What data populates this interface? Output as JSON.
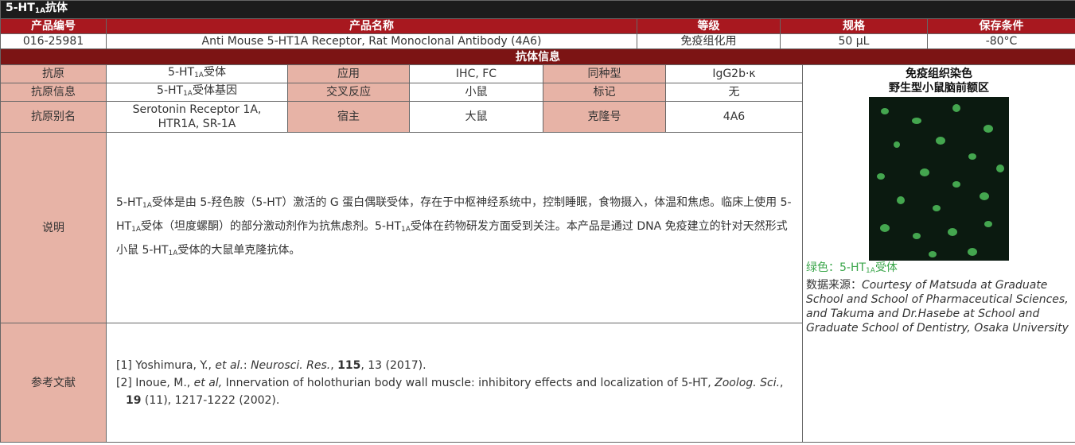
{
  "header": {
    "title": [
      "5-HT",
      "1A",
      "抗体"
    ]
  },
  "product": {
    "columns": [
      "产品编号",
      "产品名称",
      "等级",
      "规格",
      "保存条件"
    ],
    "row": [
      "016-25981",
      "Anti Mouse 5-HT1A Receptor, Rat Monoclonal Antibody (4A6)",
      "免疫组化用",
      "50 µL",
      "-80°C"
    ]
  },
  "info": {
    "title": "抗体信息",
    "antigen": {
      "label": "抗原",
      "value": [
        "5-HT",
        "1A",
        "受体"
      ]
    },
    "application": {
      "label": "应用",
      "value": "IHC, FC"
    },
    "isotype": {
      "label": "同种型",
      "value": "IgG2b·κ"
    },
    "antigen_info": {
      "label": "抗原信息",
      "value": [
        "5-HT",
        "1A",
        "受体基因"
      ]
    },
    "cross_reactivity": {
      "label": "交叉反应",
      "value": "小鼠"
    },
    "tag": {
      "label": "标记",
      "value": "无"
    },
    "alias": {
      "label": "抗原别名",
      "value": "Serotonin Receptor 1A, HTR1A, SR-1A"
    },
    "host": {
      "label": "宿主",
      "value": "大鼠"
    },
    "clone": {
      "label": "克隆号",
      "value": "4A6"
    },
    "description": {
      "label": "说明",
      "value": [
        "5-HT",
        "1A",
        "受体是由 5-羟色胺（5-HT）激活的 G 蛋白偶联受体，存在于中枢神经系统中，控制睡眠，食物摄入，体温和焦虑。临床上使用 5-HT",
        "1A",
        "受体（坦度螺酮）的部分激动剂作为抗焦虑剂。5-HT",
        "1A",
        "受体在药物研发方面受到关注。本产品是通过 DNA 免疫建立的针对天然形式小鼠 5-HT",
        "1A",
        "受体的大鼠单克隆抗体。"
      ]
    },
    "references": {
      "label": "参考文献",
      "items": [
        [
          "[1] Yoshimura, Y., ",
          "et al.",
          ": ",
          "Neurosci. Res.",
          ", ",
          "115",
          ", 13 (2017)."
        ],
        [
          "[2] Inoue, M., ",
          "et al,",
          " Innervation of holothurian body wall muscle: inhibitory effects and localization of 5-HT, ",
          "Zoolog. Sci.",
          ", ",
          "19",
          " (11), 1217-1222 (2002)."
        ]
      ]
    }
  },
  "figure": {
    "title": "免疫组织染色",
    "subtitle": "野生型小鼠脑前额区",
    "legend": [
      "绿色：5-HT",
      "1A",
      "受体"
    ],
    "source_label": "数据来源：",
    "source": "Courtesy of Matsuda at Graduate School and School of Pharmaceutical Sciences, and Takuma and Dr.Hasebe at School and Graduate School of Dentistry, Osaka University"
  }
}
